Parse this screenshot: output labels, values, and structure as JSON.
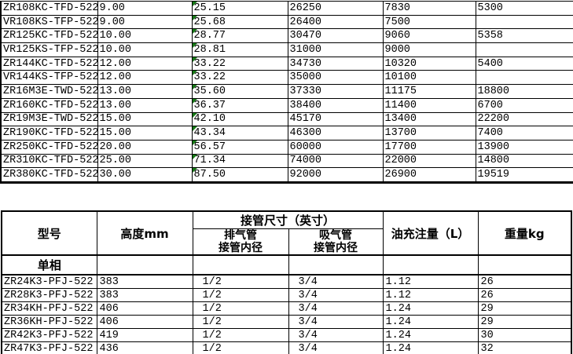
{
  "colors": {
    "marker_green": "#157815",
    "border": "#000000",
    "background": "#ffffff"
  },
  "table1": {
    "description": "upper-compressor-spec-grid",
    "flagged_column_index": 2,
    "rows": [
      [
        "ZR108KC-TFD-522",
        "9.00",
        "25.15",
        "26250",
        "7830",
        "5300"
      ],
      [
        "VR108KS-TFP-522",
        "9.00",
        "25.68",
        "26400",
        "7500",
        ""
      ],
      [
        "ZR125KC-TFD-522",
        "10.00",
        "28.77",
        "30470",
        "9060",
        "5358"
      ],
      [
        "VR125KS-TFP-522",
        "10.00",
        "28.81",
        "31000",
        "9000",
        ""
      ],
      [
        "ZR144KC-TFD-522",
        "12.00",
        "33.22",
        "34730",
        "10320",
        "5400"
      ],
      [
        "VR144KS-TFP-522",
        "12.00",
        "33.22",
        "35000",
        "10100",
        ""
      ],
      [
        "ZR16M3E-TWD-522",
        "13.00",
        "35.60",
        "37330",
        "11175",
        "18800"
      ],
      [
        "ZR160KC-TFD-522",
        "13.00",
        "36.37",
        "38400",
        "11400",
        "6700"
      ],
      [
        "ZR19M3E-TWD-522",
        "15.00",
        "42.10",
        "45170",
        "13400",
        "22200"
      ],
      [
        "ZR190KC-TFD-522",
        "15.00",
        "43.34",
        "46300",
        "13700",
        "7400"
      ],
      [
        "ZR250KC-TFD-522",
        "20.00",
        "56.57",
        "60000",
        "17700",
        "13900"
      ],
      [
        "ZR310KC-TFD-522",
        "25.00",
        "71.34",
        "74000",
        "22000",
        "14800"
      ],
      [
        "ZR380KC-TFD-522",
        "30.00",
        "87.50",
        "92000",
        "26900",
        "19519"
      ]
    ]
  },
  "table2": {
    "headers": {
      "model": "型号",
      "height": "高度mm",
      "pipe_group": "接管尺寸（英寸）",
      "discharge": "排气管\n接管内径",
      "suction": "吸气管\n接管内径",
      "oil": "油充注量（L）",
      "weight": "重量kg"
    },
    "section_label": "单相",
    "rows": [
      [
        "ZR24K3-PFJ-522",
        "383",
        "1/2",
        "3/4",
        "1.12",
        "26"
      ],
      [
        "ZR28K3-PFJ-522",
        "383",
        "1/2",
        "3/4",
        "1.12",
        "26"
      ],
      [
        "ZR34KH-PFJ-522",
        "406",
        "1/2",
        "3/4",
        "1.24",
        "29"
      ],
      [
        "ZR36KH-PFJ-522",
        "406",
        "1/2",
        "3/4",
        "1.24",
        "29"
      ],
      [
        "ZR42K3-PFJ-522",
        "419",
        "1/2",
        "3/4",
        "1.24",
        "30"
      ],
      [
        "ZR47K3-PFJ-522",
        "436",
        "1/2",
        "3/4",
        "1.24",
        "32"
      ]
    ]
  }
}
